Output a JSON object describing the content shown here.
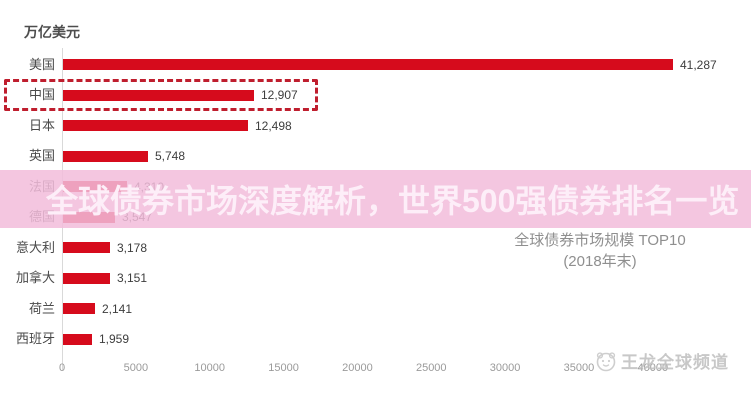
{
  "unit_label": "万亿美元",
  "headline": "全球债券市场深度解析，世界500强债券排名一览",
  "chart_caption": {
    "line1": "全球债券市场规模  TOP10",
    "line2": "(2018年末)"
  },
  "watermark": {
    "icon": "mascot-face-icon",
    "text": "王龙全球频道"
  },
  "chart_data": {
    "type": "bar",
    "orientation": "horizontal",
    "title": "全球债券市场规模 TOP10（2018年末）",
    "unit": "万亿美元",
    "categories": [
      "美国",
      "中国",
      "日本",
      "英国",
      "法国",
      "德国",
      "意大利",
      "加拿大",
      "荷兰",
      "西班牙"
    ],
    "values": [
      41287,
      12907,
      12498,
      5748,
      4310,
      3547,
      3178,
      3151,
      2141,
      1959
    ],
    "value_labels": [
      "41,287",
      "12,907",
      "12,498",
      "5,748",
      "4,310",
      "3,547",
      "3,178",
      "3,151",
      "2,141",
      "1,959"
    ],
    "highlighted_category": "中国",
    "x_ticks": [
      0,
      5000,
      10000,
      15000,
      20000,
      25000,
      30000,
      35000,
      40000
    ],
    "xlim": [
      0,
      42000
    ],
    "grid": false,
    "legend": false,
    "bar_color": "#d60b1c",
    "highlight_box_color": "#bf1e2e"
  },
  "colors": {
    "bar_red": "#d60b1c",
    "highlight_dash_red": "#bf1e2e",
    "band_pink": "rgba(242,188,219,0.85)",
    "headline_text": "#fdeef8",
    "axis_gray": "#9a9a9a",
    "caption_gray": "#8f8f8f",
    "watermark_gray": "#bfbfbf"
  }
}
